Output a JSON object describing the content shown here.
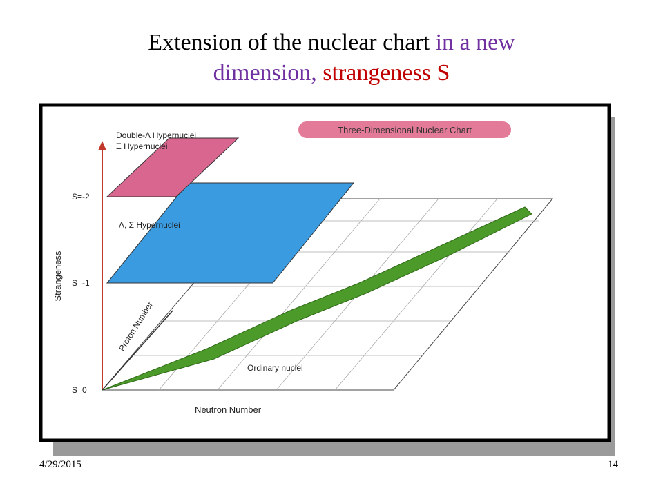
{
  "title": {
    "part1": "Extension of the nuclear chart",
    "part2": "in a new",
    "part3": "dimension,",
    "part4": "strangeness S"
  },
  "figure": {
    "banner": "Three-Dimensional Nuclear Chart",
    "plane_s2_line1": "Double-Λ Hypernuclei",
    "plane_s2_line2": "Ξ Hypernuclei",
    "plane_s1": "Λ, Σ Hypernuclei",
    "plane_s0": "Ordinary nuclei",
    "vertical_axis": "Strangeness",
    "proton_axis": "Proton Number",
    "neutron_axis": "Neutron Number",
    "level_s2": "S=-2",
    "level_s1": "S=-1",
    "level_s0": "S=0"
  },
  "footer": {
    "date": "4/29/2015",
    "page": "14"
  }
}
